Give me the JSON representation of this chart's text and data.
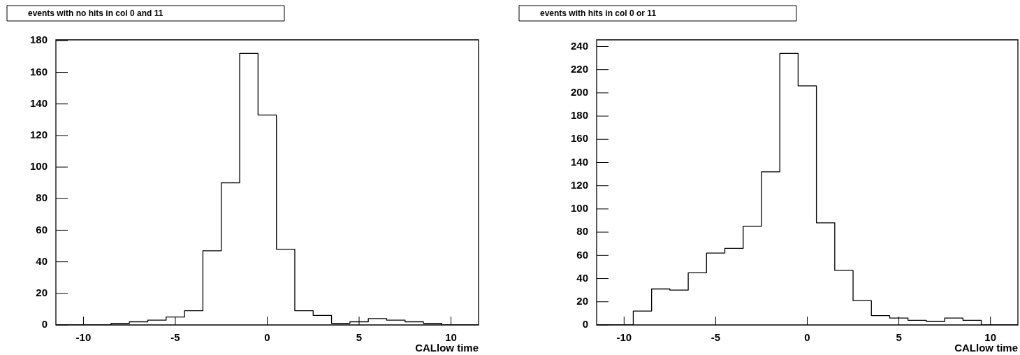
{
  "chart_data": [
    {
      "type": "histogram",
      "title": "events with no hits in col 0 and 11",
      "xlabel": "CALlow time",
      "color": "#000000",
      "bins": [
        -11.5,
        -10.5,
        -9.5,
        -8.5,
        -7.5,
        -6.5,
        -5.5,
        -4.5,
        -3.5,
        -2.5,
        -1.5,
        -0.5,
        0.5,
        1.5,
        2.5,
        3.5,
        4.5,
        5.5,
        6.5,
        7.5,
        8.5,
        9.5,
        10.5,
        11.5
      ],
      "values": [
        0,
        0,
        0,
        1,
        2,
        3,
        5,
        9,
        47,
        90,
        172,
        133,
        48,
        9,
        6,
        1,
        2,
        4,
        3,
        2,
        1,
        0,
        0
      ],
      "xlim": [
        -11.5,
        11.5
      ],
      "xticks": [
        -10,
        -5,
        0,
        5,
        10
      ],
      "ylim": [
        0,
        180.6
      ],
      "yticks": [
        0,
        20,
        40,
        60,
        80,
        100,
        120,
        140,
        160,
        180
      ]
    },
    {
      "type": "histogram",
      "title": "events with hits in col 0 or 11",
      "xlabel": "CALlow time",
      "color": "#000000",
      "bins": [
        -11.5,
        -10.5,
        -9.5,
        -8.5,
        -7.5,
        -6.5,
        -5.5,
        -4.5,
        -3.5,
        -2.5,
        -1.5,
        -0.5,
        0.5,
        1.5,
        2.5,
        3.5,
        4.5,
        5.5,
        6.5,
        7.5,
        8.5,
        9.5,
        10.5,
        11.5
      ],
      "values": [
        0,
        0,
        12,
        31,
        30,
        45,
        62,
        66,
        85,
        132,
        234,
        206,
        88,
        47,
        21,
        8,
        6,
        4,
        3,
        6,
        4,
        0,
        0
      ],
      "xlim": [
        -11.5,
        11.5
      ],
      "xticks": [
        -10,
        -5,
        0,
        5,
        10
      ],
      "ylim": [
        0,
        245.7
      ],
      "yticks": [
        0,
        20,
        40,
        60,
        80,
        100,
        120,
        140,
        160,
        180,
        200,
        220,
        240
      ]
    }
  ]
}
